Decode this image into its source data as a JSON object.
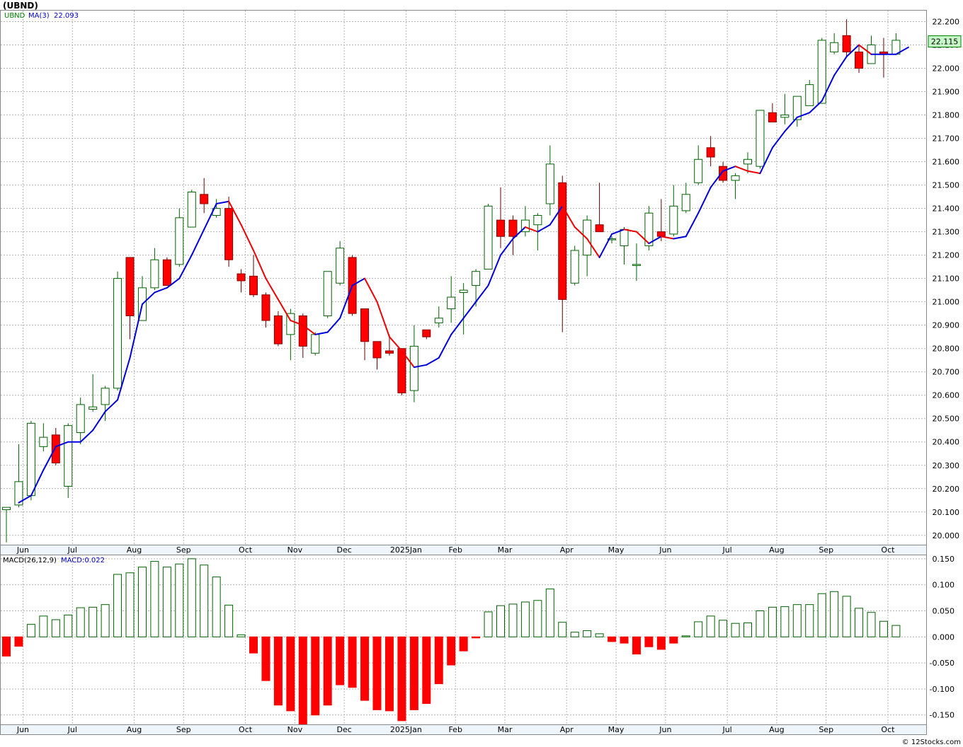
{
  "chart_data": {
    "type": "candlestick",
    "title": "(UBND)",
    "symbol": "UBND",
    "ma_label": "MA(3)",
    "ma_value": "22.093",
    "last_price": "22.115",
    "watermark": "© 12Stocks.com",
    "price_ylim": [
      19.96,
      22.25
    ],
    "price_ticks": [
      "20.000",
      "20.100",
      "20.200",
      "20.300",
      "20.400",
      "20.500",
      "20.600",
      "20.700",
      "20.800",
      "20.900",
      "21.000",
      "21.100",
      "21.200",
      "21.300",
      "21.400",
      "21.500",
      "21.600",
      "21.700",
      "21.800",
      "21.900",
      "22.000",
      "22.100",
      "22.200"
    ],
    "month_labels": [
      {
        "label": "Jun",
        "bar": 1
      },
      {
        "label": "Jul",
        "bar": 5
      },
      {
        "label": "Aug",
        "bar": 10
      },
      {
        "label": "Sep",
        "bar": 14
      },
      {
        "label": "Oct",
        "bar": 19
      },
      {
        "label": "Nov",
        "bar": 23
      },
      {
        "label": "Dec",
        "bar": 27
      },
      {
        "label": "2025Jan",
        "bar": 32
      },
      {
        "label": "Feb",
        "bar": 36
      },
      {
        "label": "Mar",
        "bar": 40
      },
      {
        "label": "Apr",
        "bar": 45
      },
      {
        "label": "May",
        "bar": 49
      },
      {
        "label": "Jun",
        "bar": 53
      },
      {
        "label": "Jul",
        "bar": 58
      },
      {
        "label": "Aug",
        "bar": 62
      },
      {
        "label": "Sep",
        "bar": 66
      },
      {
        "label": "Oct",
        "bar": 71
      }
    ],
    "candles": [
      {
        "o": 20.11,
        "h": 20.12,
        "l": 19.97,
        "c": 20.12
      },
      {
        "o": 20.13,
        "h": 20.39,
        "l": 20.12,
        "c": 20.23
      },
      {
        "o": 20.17,
        "h": 20.49,
        "l": 20.15,
        "c": 20.48
      },
      {
        "o": 20.38,
        "h": 20.48,
        "l": 20.36,
        "c": 20.42
      },
      {
        "o": 20.43,
        "h": 20.46,
        "l": 20.3,
        "c": 20.31
      },
      {
        "o": 20.21,
        "h": 20.48,
        "l": 20.16,
        "c": 20.47
      },
      {
        "o": 20.44,
        "h": 20.59,
        "l": 20.39,
        "c": 20.56
      },
      {
        "o": 20.54,
        "h": 20.69,
        "l": 20.53,
        "c": 20.55
      },
      {
        "o": 20.56,
        "h": 20.64,
        "l": 20.49,
        "c": 20.63
      },
      {
        "o": 20.63,
        "h": 21.13,
        "l": 20.62,
        "c": 21.1
      },
      {
        "o": 21.19,
        "h": 21.19,
        "l": 20.84,
        "c": 20.94
      },
      {
        "o": 20.92,
        "h": 21.11,
        "l": 20.92,
        "c": 21.06
      },
      {
        "o": 21.06,
        "h": 21.23,
        "l": 21.05,
        "c": 21.18
      },
      {
        "o": 21.18,
        "h": 21.19,
        "l": 21.07,
        "c": 21.07
      },
      {
        "o": 21.16,
        "h": 21.4,
        "l": 21.15,
        "c": 21.36
      },
      {
        "o": 21.32,
        "h": 21.48,
        "l": 21.32,
        "c": 21.47
      },
      {
        "o": 21.46,
        "h": 21.53,
        "l": 21.38,
        "c": 21.42
      },
      {
        "o": 21.37,
        "h": 21.44,
        "l": 21.36,
        "c": 21.4
      },
      {
        "o": 21.4,
        "h": 21.45,
        "l": 21.15,
        "c": 21.18
      },
      {
        "o": 21.12,
        "h": 21.14,
        "l": 21.04,
        "c": 21.09
      },
      {
        "o": 21.11,
        "h": 21.2,
        "l": 21.02,
        "c": 21.03
      },
      {
        "o": 21.03,
        "h": 21.04,
        "l": 20.89,
        "c": 20.92
      },
      {
        "o": 20.94,
        "h": 20.96,
        "l": 20.81,
        "c": 20.82
      },
      {
        "o": 20.86,
        "h": 20.97,
        "l": 20.75,
        "c": 20.95
      },
      {
        "o": 20.94,
        "h": 20.95,
        "l": 20.76,
        "c": 20.81
      },
      {
        "o": 20.78,
        "h": 20.87,
        "l": 20.77,
        "c": 20.86
      },
      {
        "o": 20.94,
        "h": 21.13,
        "l": 20.93,
        "c": 21.13
      },
      {
        "o": 21.08,
        "h": 21.26,
        "l": 21.07,
        "c": 21.23
      },
      {
        "o": 21.19,
        "h": 21.2,
        "l": 20.94,
        "c": 20.95
      },
      {
        "o": 20.97,
        "h": 20.97,
        "l": 20.75,
        "c": 20.83
      },
      {
        "o": 20.83,
        "h": 20.83,
        "l": 20.71,
        "c": 20.76
      },
      {
        "o": 20.79,
        "h": 20.86,
        "l": 20.77,
        "c": 20.78
      },
      {
        "o": 20.8,
        "h": 20.8,
        "l": 20.6,
        "c": 20.61
      },
      {
        "o": 20.62,
        "h": 20.9,
        "l": 20.57,
        "c": 20.81
      },
      {
        "o": 20.88,
        "h": 20.88,
        "l": 20.84,
        "c": 20.85
      },
      {
        "o": 20.91,
        "h": 20.98,
        "l": 20.89,
        "c": 20.93
      },
      {
        "o": 20.97,
        "h": 21.11,
        "l": 20.91,
        "c": 21.02
      },
      {
        "o": 21.04,
        "h": 21.08,
        "l": 20.86,
        "c": 21.05
      },
      {
        "o": 21.07,
        "h": 21.14,
        "l": 20.98,
        "c": 21.13
      },
      {
        "o": 21.14,
        "h": 21.42,
        "l": 21.14,
        "c": 21.41
      },
      {
        "o": 21.35,
        "h": 21.49,
        "l": 21.23,
        "c": 21.28
      },
      {
        "o": 21.35,
        "h": 21.37,
        "l": 21.2,
        "c": 21.28
      },
      {
        "o": 21.3,
        "h": 21.41,
        "l": 21.28,
        "c": 21.35
      },
      {
        "o": 21.33,
        "h": 21.38,
        "l": 21.22,
        "c": 21.37
      },
      {
        "o": 21.42,
        "h": 21.67,
        "l": 21.37,
        "c": 21.59
      },
      {
        "o": 21.51,
        "h": 21.54,
        "l": 20.87,
        "c": 21.01
      },
      {
        "o": 21.08,
        "h": 21.24,
        "l": 21.07,
        "c": 21.22
      },
      {
        "o": 21.2,
        "h": 21.37,
        "l": 21.11,
        "c": 21.35
      },
      {
        "o": 21.33,
        "h": 21.51,
        "l": 21.3,
        "c": 21.3
      },
      {
        "o": 21.27,
        "h": 21.28,
        "l": 21.25,
        "c": 21.27
      },
      {
        "o": 21.24,
        "h": 21.32,
        "l": 21.16,
        "c": 21.31
      },
      {
        "o": 21.16,
        "h": 21.25,
        "l": 21.09,
        "c": 21.16
      },
      {
        "o": 21.24,
        "h": 21.41,
        "l": 21.22,
        "c": 21.38
      },
      {
        "o": 21.3,
        "h": 21.44,
        "l": 21.26,
        "c": 21.28
      },
      {
        "o": 21.29,
        "h": 21.5,
        "l": 21.28,
        "c": 21.41
      },
      {
        "o": 21.39,
        "h": 21.51,
        "l": 21.38,
        "c": 21.46
      },
      {
        "o": 21.51,
        "h": 21.67,
        "l": 21.5,
        "c": 21.61
      },
      {
        "o": 21.66,
        "h": 21.71,
        "l": 21.58,
        "c": 21.62
      },
      {
        "o": 21.58,
        "h": 21.6,
        "l": 21.51,
        "c": 21.52
      },
      {
        "o": 21.52,
        "h": 21.55,
        "l": 21.44,
        "c": 21.54
      },
      {
        "o": 21.59,
        "h": 21.64,
        "l": 21.55,
        "c": 21.61
      },
      {
        "o": 21.58,
        "h": 21.82,
        "l": 21.57,
        "c": 21.82
      },
      {
        "o": 21.81,
        "h": 21.85,
        "l": 21.77,
        "c": 21.77
      },
      {
        "o": 21.79,
        "h": 21.89,
        "l": 21.76,
        "c": 21.8
      },
      {
        "o": 21.78,
        "h": 21.88,
        "l": 21.75,
        "c": 21.88
      },
      {
        "o": 21.84,
        "h": 21.95,
        "l": 21.84,
        "c": 21.93
      },
      {
        "o": 21.85,
        "h": 22.13,
        "l": 21.85,
        "c": 22.12
      },
      {
        "o": 22.07,
        "h": 22.15,
        "l": 22.06,
        "c": 22.11
      },
      {
        "o": 22.14,
        "h": 22.21,
        "l": 22.05,
        "c": 22.07
      },
      {
        "o": 22.07,
        "h": 22.1,
        "l": 21.98,
        "c": 22.0
      },
      {
        "o": 22.02,
        "h": 22.14,
        "l": 22.02,
        "c": 22.1
      },
      {
        "o": 22.07,
        "h": 22.13,
        "l": 21.96,
        "c": 22.06
      },
      {
        "o": 22.06,
        "h": 22.15,
        "l": 22.06,
        "c": 22.12
      }
    ],
    "ma": [
      20.14,
      20.17,
      20.28,
      20.38,
      20.4,
      20.4,
      20.45,
      20.53,
      20.58,
      20.76,
      20.99,
      21.04,
      21.06,
      21.1,
      21.2,
      21.31,
      21.42,
      21.43,
      21.33,
      21.22,
      21.1,
      21.01,
      20.92,
      20.9,
      20.86,
      20.87,
      20.93,
      21.07,
      21.1,
      21.0,
      20.85,
      20.79,
      20.72,
      20.73,
      20.76,
      20.86,
      20.93,
      21.0,
      21.07,
      21.2,
      21.27,
      21.32,
      21.3,
      21.33,
      21.41,
      21.32,
      21.27,
      21.19,
      21.29,
      21.31,
      21.3,
      21.25,
      21.28,
      21.27,
      21.28,
      21.38,
      21.49,
      21.56,
      21.58,
      21.56,
      21.55,
      21.66,
      21.73,
      21.79,
      21.81,
      21.86,
      21.97,
      22.05,
      22.1,
      22.06,
      22.06,
      22.06,
      22.09
    ],
    "macd_label": "MACD(26,12,9)",
    "macd_value_label": "MACD:0.022",
    "macd_ylim": [
      -0.168,
      0.158
    ],
    "macd_ticks": [
      "0.150",
      "0.100",
      "0.050",
      "0.000",
      "-0.050",
      "-0.100",
      "-0.150"
    ],
    "macd": [
      -0.037,
      -0.018,
      0.024,
      0.04,
      0.033,
      0.042,
      0.056,
      0.057,
      0.062,
      0.12,
      0.123,
      0.134,
      0.145,
      0.134,
      0.14,
      0.15,
      0.138,
      0.115,
      0.061,
      0.004,
      -0.031,
      -0.084,
      -0.131,
      -0.142,
      -0.168,
      -0.15,
      -0.131,
      -0.092,
      -0.097,
      -0.122,
      -0.14,
      -0.142,
      -0.161,
      -0.14,
      -0.128,
      -0.09,
      -0.054,
      -0.027,
      -0.002,
      0.048,
      0.06,
      0.063,
      0.067,
      0.07,
      0.092,
      0.028,
      0.009,
      0.012,
      0.006,
      -0.009,
      -0.012,
      -0.033,
      -0.019,
      -0.024,
      -0.012,
      0.002,
      0.029,
      0.04,
      0.032,
      0.026,
      0.027,
      0.05,
      0.057,
      0.058,
      0.062,
      0.062,
      0.083,
      0.087,
      0.078,
      0.055,
      0.047,
      0.03,
      0.022
    ]
  }
}
